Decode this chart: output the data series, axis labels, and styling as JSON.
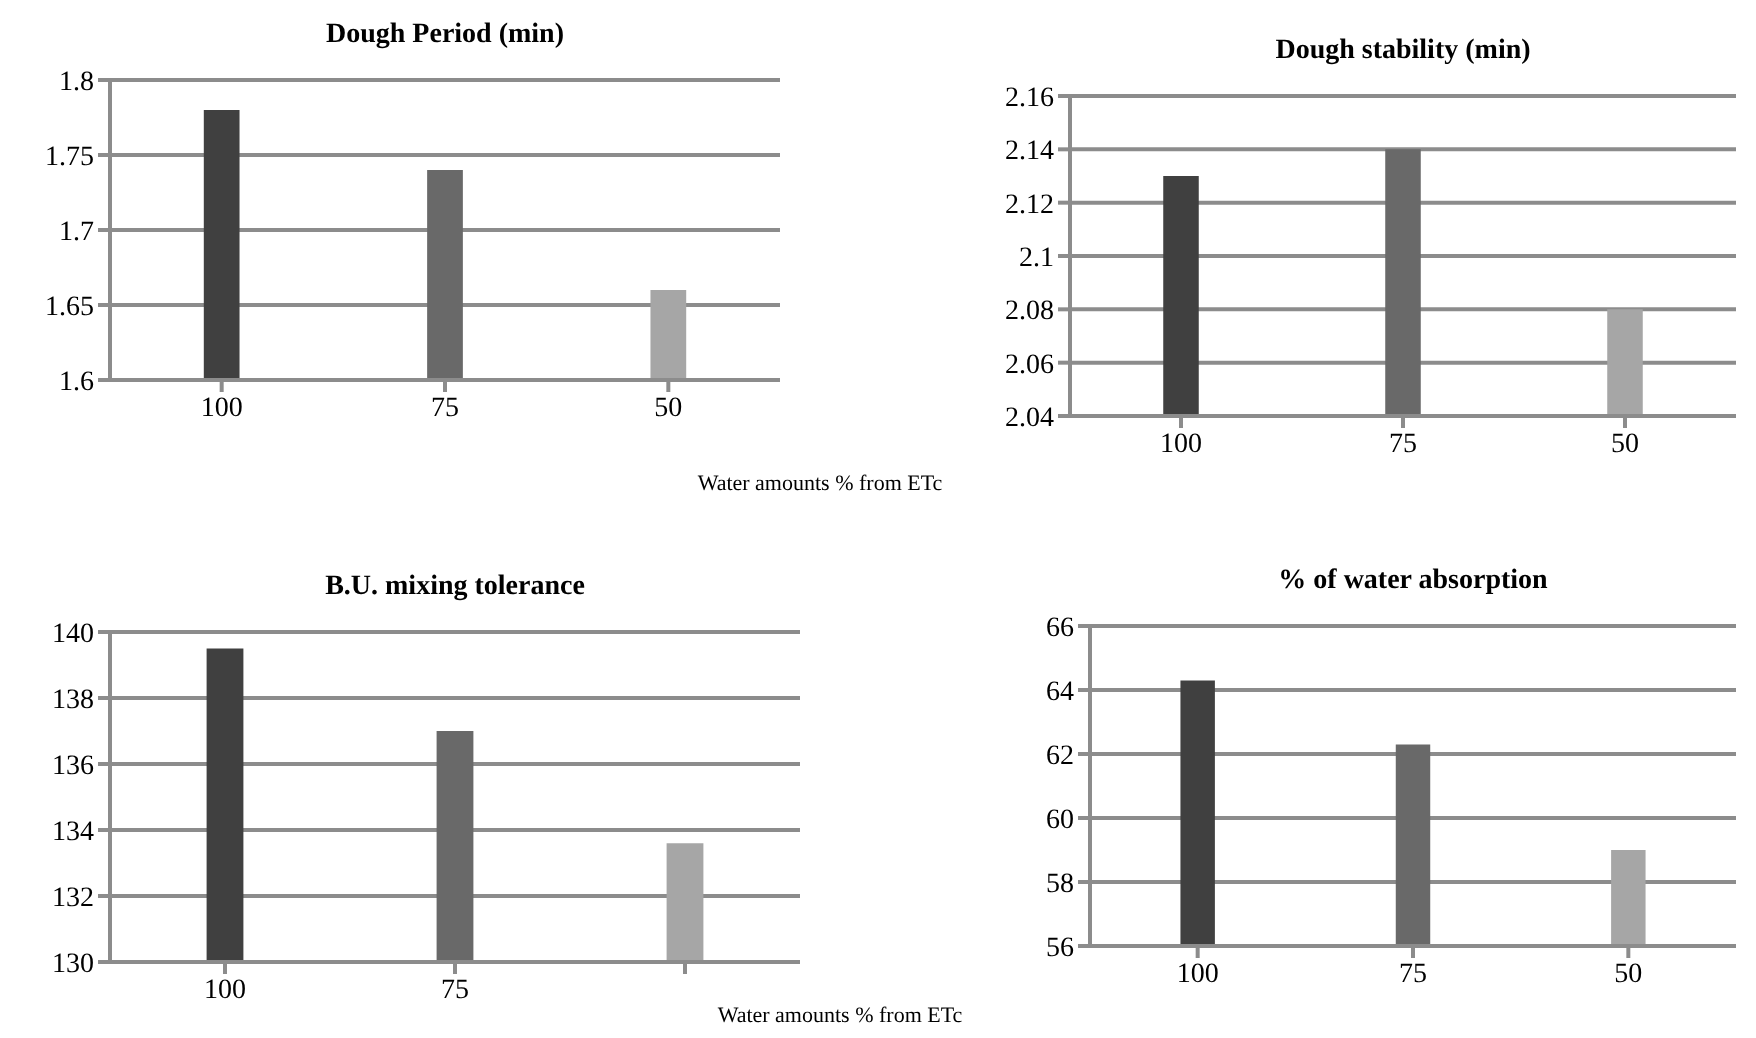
{
  "chart_data": [
    {
      "type": "bar",
      "title": "Dough Period (min)",
      "xlabel": "Water amounts % from ETc",
      "categories": [
        "100",
        "75",
        "50"
      ],
      "values": [
        1.78,
        1.74,
        1.66
      ],
      "colors": [
        "#404040",
        "#696969",
        "#a6a6a6"
      ],
      "ylim": [
        1.6,
        1.8
      ],
      "yticks": [
        1.6,
        1.65,
        1.7,
        1.75,
        1.8
      ],
      "grid": "y"
    },
    {
      "type": "bar",
      "title": "Dough stability (min)",
      "categories": [
        "100",
        "75",
        "50"
      ],
      "values": [
        2.13,
        2.14,
        2.08
      ],
      "colors": [
        "#404040",
        "#696969",
        "#a6a6a6"
      ],
      "ylim": [
        2.04,
        2.16
      ],
      "yticks": [
        2.04,
        2.06,
        2.08,
        2.1,
        2.12,
        2.14,
        2.16
      ],
      "grid": "y"
    },
    {
      "type": "bar",
      "title": "B.U. mixing tolerance",
      "xlabel": "Water amounts % from ETc",
      "categories": [
        "100",
        "75",
        null
      ],
      "values": [
        139.5,
        137,
        133.6
      ],
      "colors": [
        "#404040",
        "#696969",
        "#a6a6a6"
      ],
      "ylim": [
        130,
        140
      ],
      "yticks": [
        130,
        132,
        134,
        136,
        138,
        140
      ],
      "grid": "y"
    },
    {
      "type": "bar",
      "title": "% of water absorption",
      "categories": [
        "100",
        "75",
        "50"
      ],
      "values": [
        64.3,
        62.3,
        59
      ],
      "colors": [
        "#404040",
        "#696969",
        "#a6a6a6"
      ],
      "ylim": [
        56,
        66
      ],
      "yticks": [
        56,
        58,
        60,
        62,
        64,
        66
      ],
      "grid": "y"
    }
  ]
}
